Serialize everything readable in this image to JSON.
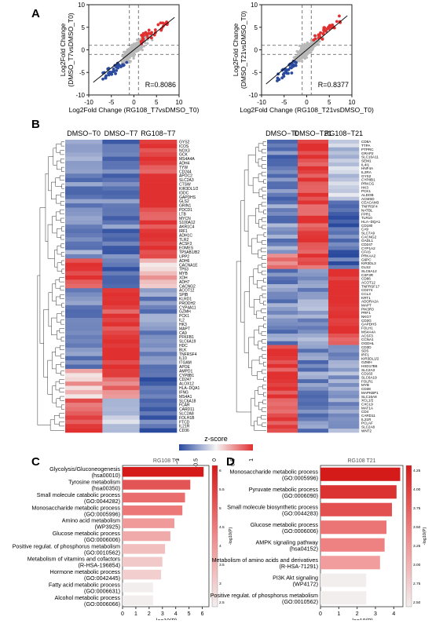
{
  "panels": {
    "A": "A",
    "B": "B",
    "C": "C",
    "D": "D"
  },
  "scatter": [
    {
      "ylabel1": "Log2Fold Change",
      "ylabel2": "(DMSO_T7vsDMSO_T0)",
      "xlabel": "Log2Fold Change (RG108_T7vsDMSO_T0)",
      "r_label": "R=0.8086",
      "xticks": [
        "-10",
        "-5",
        "0",
        "5",
        "10"
      ],
      "yticks": [
        "10",
        "5",
        "0",
        "-5",
        "-10"
      ]
    },
    {
      "ylabel1": "Log2Fold Change",
      "ylabel2": "(DMSO_T21vsDMSO_T0)",
      "xlabel": "Log2Fold Change (RG108_T21vsDMSO_T0)",
      "r_label": "R=0.8377",
      "xticks": [
        "-10",
        "-5",
        "0",
        "5",
        "10"
      ],
      "yticks": [
        "10",
        "5",
        "0",
        "-5",
        "-10"
      ]
    }
  ],
  "heatmap": {
    "left": {
      "columns": [
        "DMSO−T0",
        "DMSO−T7",
        "RG108−T7"
      ],
      "genes": [
        "GYS2",
        "ICOS",
        "NOX3",
        "GCK",
        "MS4A4A",
        "ADH4",
        "TYW",
        "CD244",
        "APOC2",
        "SLC2A3",
        "CTSW",
        "KIR3DL1/2",
        "IDDC",
        "GAPDHS",
        "GLS2",
        "GRIN1",
        "PDCD1",
        "LTB",
        "MYCN",
        "S100A12",
        "AKR1C4",
        "IRF1",
        "ADH1C",
        "TLR2",
        "ACSF3",
        "EOMES",
        "TP5AB1/B2",
        "UPP2",
        "ADH6",
        "CACNA1E",
        "TP63",
        "MYB",
        "XDH",
        "ADH7",
        "CACNG2",
        "ACOT12",
        "SPIB",
        "KLRD1",
        "PRODH2",
        "CYP4A11",
        "GZMH",
        "PCK1",
        "IL2",
        "HK3",
        "MAPT",
        "CA9",
        "PFKFB1",
        "SLC6A19",
        "HDC",
        "BLK",
        "TNFRSF4",
        "IL10",
        "ITGAM",
        "APOE",
        "AMPD1",
        "CYP8B1",
        "CD247",
        "ALOX12",
        "HLA−DQA1",
        "IFNG",
        "MS4A1",
        "SLC6A18",
        "FCAR",
        "CARD11",
        "SLC2A8",
        "FOLH1B",
        "FTCD",
        "IL21R",
        "CD36"
      ]
    },
    "right": {
      "columns": [
        "DMSO−T0",
        "DMSO−T21",
        "RG108−T21"
      ],
      "genes": [
        "CD8A",
        "TTPA",
        "PTPRC",
        "GRAP2",
        "SLC16A11",
        "SEM1",
        "IL4I1",
        "HNF4A",
        "IL2RA",
        "GYS2",
        "CYP8B1",
        "PRKCG",
        "HK3",
        "PCK1",
        "ALDOB",
        "ACMSD",
        "CEACAM3",
        "TNFRSF4",
        "NATBL",
        "FPR1",
        "TLR10",
        "HLA−DQA1",
        "CD180",
        "CA9",
        "SLC7A9",
        "CACNG2",
        "GADL1",
        "CD247",
        "CYP1A2",
        "CFAS",
        "PRKAA2",
        "G6PC",
        "KIR3DL3",
        "GLS2",
        "SLC6A12",
        "CSF3R",
        "CD86",
        "ACOT12",
        "TNFRSF17",
        "CD274",
        "CCL3",
        "KRT1",
        "ADORA2A",
        "MAPT",
        "PIK3R3",
        "PRF1",
        "NKG7",
        "CD3G",
        "GAPDHS",
        "FOLH1",
        "MS4A4A",
        "ACSF3",
        "CCNA1",
        "OGDHL",
        "CD3D",
        "SDS",
        "IRF1",
        "KIR3DL1/2",
        "GZMH",
        "HSD17B6",
        "SLC2A3",
        "CD163",
        "SLC6A19",
        "FOLR1",
        "MYB",
        "CD38",
        "MAPKBP1",
        "SLC16A8",
        "XCL1/2",
        "CXCL9",
        "MAT1A",
        "CD4",
        "CARD11",
        "IL21R",
        "PCLAF",
        "SLC2A8",
        "WNT2"
      ]
    },
    "legend_title": "z-score",
    "legend_ticks": [
      "−1",
      "−0.5",
      "0",
      "0.5",
      "1"
    ]
  },
  "bar_C": {
    "title": "RG108 T7",
    "xlabel": "-log10(P)",
    "xticks": [
      "0",
      "1",
      "2",
      "3",
      "4",
      "5",
      "6"
    ],
    "cbar_label": "-log10(P)",
    "cbar_ticks": [
      "6",
      "5.5",
      "5",
      "4.5",
      "4",
      "3.5",
      "3",
      "2.5"
    ],
    "items": [
      {
        "l1": "Glycolysis/Gluconeogenesis",
        "l2": "(hsa00010)",
        "v": 6.1
      },
      {
        "l1": "Tyrosine metabolism",
        "l2": "(hsa00350)",
        "v": 5.1
      },
      {
        "l1": "Small molecule catabolic process",
        "l2": "(GO:0044282)",
        "v": 4.7
      },
      {
        "l1": "Monosaccharide metabolic process",
        "l2": "(GO:0005996)",
        "v": 4.5
      },
      {
        "l1": "Amino acid metabolism",
        "l2": "(WP3925)",
        "v": 3.9
      },
      {
        "l1": "Glucose metabolic process",
        "l2": "(GO:0006006)",
        "v": 3.6
      },
      {
        "l1": "Positive regulat. of phosphorus metabolism",
        "l2": "(GO:0010562)",
        "v": 3.2
      },
      {
        "l1": "Metabolism of vitamins and cofactors",
        "l2": "(R-HSA-196854)",
        "v": 3.0
      },
      {
        "l1": "Hormone metabolic process",
        "l2": "(GO:0042445)",
        "v": 2.9
      },
      {
        "l1": "Fatty acid metabolic process",
        "l2": "(GO:0006631)",
        "v": 2.3
      },
      {
        "l1": "Alcohol metabolic process",
        "l2": "(GO:0006066)",
        "v": 2.3
      }
    ]
  },
  "bar_D": {
    "title": "RG108 T21",
    "xlabel": "-log10(P)",
    "xticks": [
      "0",
      "1",
      "2",
      "3",
      "4"
    ],
    "cbar_label": "-log10(P)",
    "cbar_ticks": [
      "4.25",
      "4.00",
      "3.75",
      "3.50",
      "3.25",
      "3.00",
      "2.75",
      "2.50"
    ],
    "items": [
      {
        "l1": "Monosaccharide metabolic process",
        "l2": "(GO:0005996)",
        "v": 4.35
      },
      {
        "l1": "Pyruvate metabolic process",
        "l2": "(GO:0006090)",
        "v": 4.15
      },
      {
        "l1": "Small molecule biosynthetic process",
        "l2": "(GO:0044283)",
        "v": 3.9
      },
      {
        "l1": "Glucose metabolic process",
        "l2": "(GO:0006006)",
        "v": 3.6
      },
      {
        "l1": "AMPK signaling pathway",
        "l2": "(hsa04152)",
        "v": 3.5
      },
      {
        "l1": "Metabolism of amino acids and derivatives",
        "l2": "(R-HSA-71291)",
        "v": 3.25
      },
      {
        "l1": "PI3K Akt signaling",
        "l2": "(WP4172)",
        "v": 2.5
      },
      {
        "l1": "Positive regulat. of phosphorus metabolism",
        "l2": "(GO:0010562)",
        "v": 2.5
      }
    ]
  },
  "colors": {
    "red": "#e03030",
    "blue": "#2a4a9e",
    "white": "#f5f5f5",
    "grey": "#b8b8b8"
  },
  "chart_data": [
    {
      "type": "scatter",
      "title": "",
      "xlabel": "Log2Fold Change (RG108_T7vsDMSO_T0)",
      "ylabel": "Log2Fold Change (DMSO_T7vsDMSO_T0)",
      "xlim": [
        -10,
        10
      ],
      "ylim": [
        -10,
        10
      ],
      "annotation": "R=0.8086"
    },
    {
      "type": "scatter",
      "title": "",
      "xlabel": "Log2Fold Change (RG108_T21vsDMSO_T0)",
      "ylabel": "Log2Fold Change (DMSO_T21vsDMSO_T0)",
      "xlim": [
        -10,
        10
      ],
      "ylim": [
        -10,
        10
      ],
      "annotation": "R=0.8377"
    },
    {
      "type": "bar",
      "title": "RG108 T7",
      "xlabel": "-log10(P)",
      "categories": [
        "Glycolysis/Gluconeogenesis (hsa00010)",
        "Tyrosine metabolism (hsa00350)",
        "Small molecule catabolic process (GO:0044282)",
        "Monosaccharide metabolic process (GO:0005996)",
        "Amino acid metabolism (WP3925)",
        "Glucose metabolic process (GO:0006006)",
        "Positive regulat. of phosphorus metabolism (GO:0010562)",
        "Metabolism of vitamins and cofactors (R-HSA-196854)",
        "Hormone metabolic process (GO:0042445)",
        "Fatty acid metabolic process (GO:0006631)",
        "Alcohol metabolic process (GO:0006066)"
      ],
      "values": [
        6.1,
        5.1,
        4.7,
        4.5,
        3.9,
        3.6,
        3.2,
        3.0,
        2.9,
        2.3,
        2.3
      ],
      "xlim": [
        0,
        6.5
      ]
    },
    {
      "type": "bar",
      "title": "RG108 T21",
      "xlabel": "-log10(P)",
      "categories": [
        "Monosaccharide metabolic process (GO:0005996)",
        "Pyruvate metabolic process (GO:0006090)",
        "Small molecule biosynthetic process (GO:0044283)",
        "Glucose metabolic process (GO:0006006)",
        "AMPK signaling pathway (hsa04152)",
        "Metabolism of amino acids and derivatives (R-HSA-71291)",
        "PI3K Akt signaling (WP4172)",
        "Positive regulat. of phosphorus metabolism (GO:0010562)"
      ],
      "values": [
        4.35,
        4.15,
        3.9,
        3.6,
        3.5,
        3.25,
        2.5,
        2.5
      ],
      "xlim": [
        0,
        4.5
      ]
    }
  ]
}
